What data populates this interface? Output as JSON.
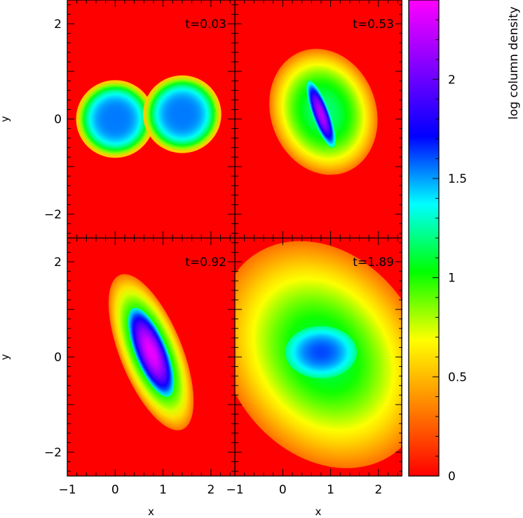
{
  "chart_data": {
    "type": "heatmap",
    "xlabel": "x",
    "ylabel": "y",
    "xlim": [
      -1,
      2.5
    ],
    "ylim": [
      -2.5,
      2.5
    ],
    "xticks": [
      -1,
      0,
      1,
      2
    ],
    "yticks": [
      -2,
      0,
      2
    ],
    "colorbar": {
      "label": "log column density",
      "range": [
        0,
        2.4
      ],
      "ticks": [
        0,
        0.5,
        1,
        1.5,
        2
      ],
      "colormap": [
        "#ff0000",
        "#ff8000",
        "#ffff00",
        "#00ff00",
        "#00ffff",
        "#0000ff",
        "#8000ff",
        "#ff00ff"
      ]
    },
    "panels": [
      {
        "time_label": "t=0.03",
        "blobs": [
          {
            "cx": 0.0,
            "cy": 0.0,
            "rx": 0.78,
            "ry": 0.78,
            "angle": 0,
            "peak": 1.55,
            "edge_level": 0.55,
            "shape": "flat"
          },
          {
            "cx": 1.4,
            "cy": 0.1,
            "rx": 0.78,
            "ry": 0.78,
            "angle": 0,
            "peak": 1.55,
            "edge_level": 0.55,
            "shape": "flat"
          }
        ]
      },
      {
        "time_label": "t=0.53",
        "blobs": [
          {
            "cx": 0.85,
            "cy": 0.15,
            "rx": 1.1,
            "ry": 1.35,
            "angle": -20,
            "peak": 1.2,
            "edge_level": 0.3,
            "shape": "soft"
          },
          {
            "cx": 0.8,
            "cy": 0.1,
            "rx": 0.18,
            "ry": 0.75,
            "angle": -20,
            "peak": 2.2,
            "edge_level": 1.2,
            "shape": "soft"
          }
        ]
      },
      {
        "time_label": "t=0.92",
        "blobs": [
          {
            "cx": 0.75,
            "cy": 0.1,
            "rx": 0.65,
            "ry": 1.75,
            "angle": -22,
            "peak": 1.3,
            "edge_level": 0.3,
            "shape": "soft"
          },
          {
            "cx": 0.75,
            "cy": 0.1,
            "rx": 0.33,
            "ry": 1.0,
            "angle": -22,
            "peak": 2.35,
            "edge_level": 1.3,
            "shape": "soft"
          }
        ]
      },
      {
        "time_label": "t=1.89",
        "blobs": [
          {
            "cx": 0.85,
            "cy": 0.05,
            "rx": 2.0,
            "ry": 2.55,
            "angle": -35,
            "peak": 1.2,
            "edge_level": 0.3,
            "shape": "wide"
          },
          {
            "cx": 0.8,
            "cy": 0.1,
            "rx": 0.75,
            "ry": 0.55,
            "angle": 0,
            "peak": 1.62,
            "edge_level": 1.2,
            "shape": "soft"
          }
        ]
      }
    ]
  }
}
